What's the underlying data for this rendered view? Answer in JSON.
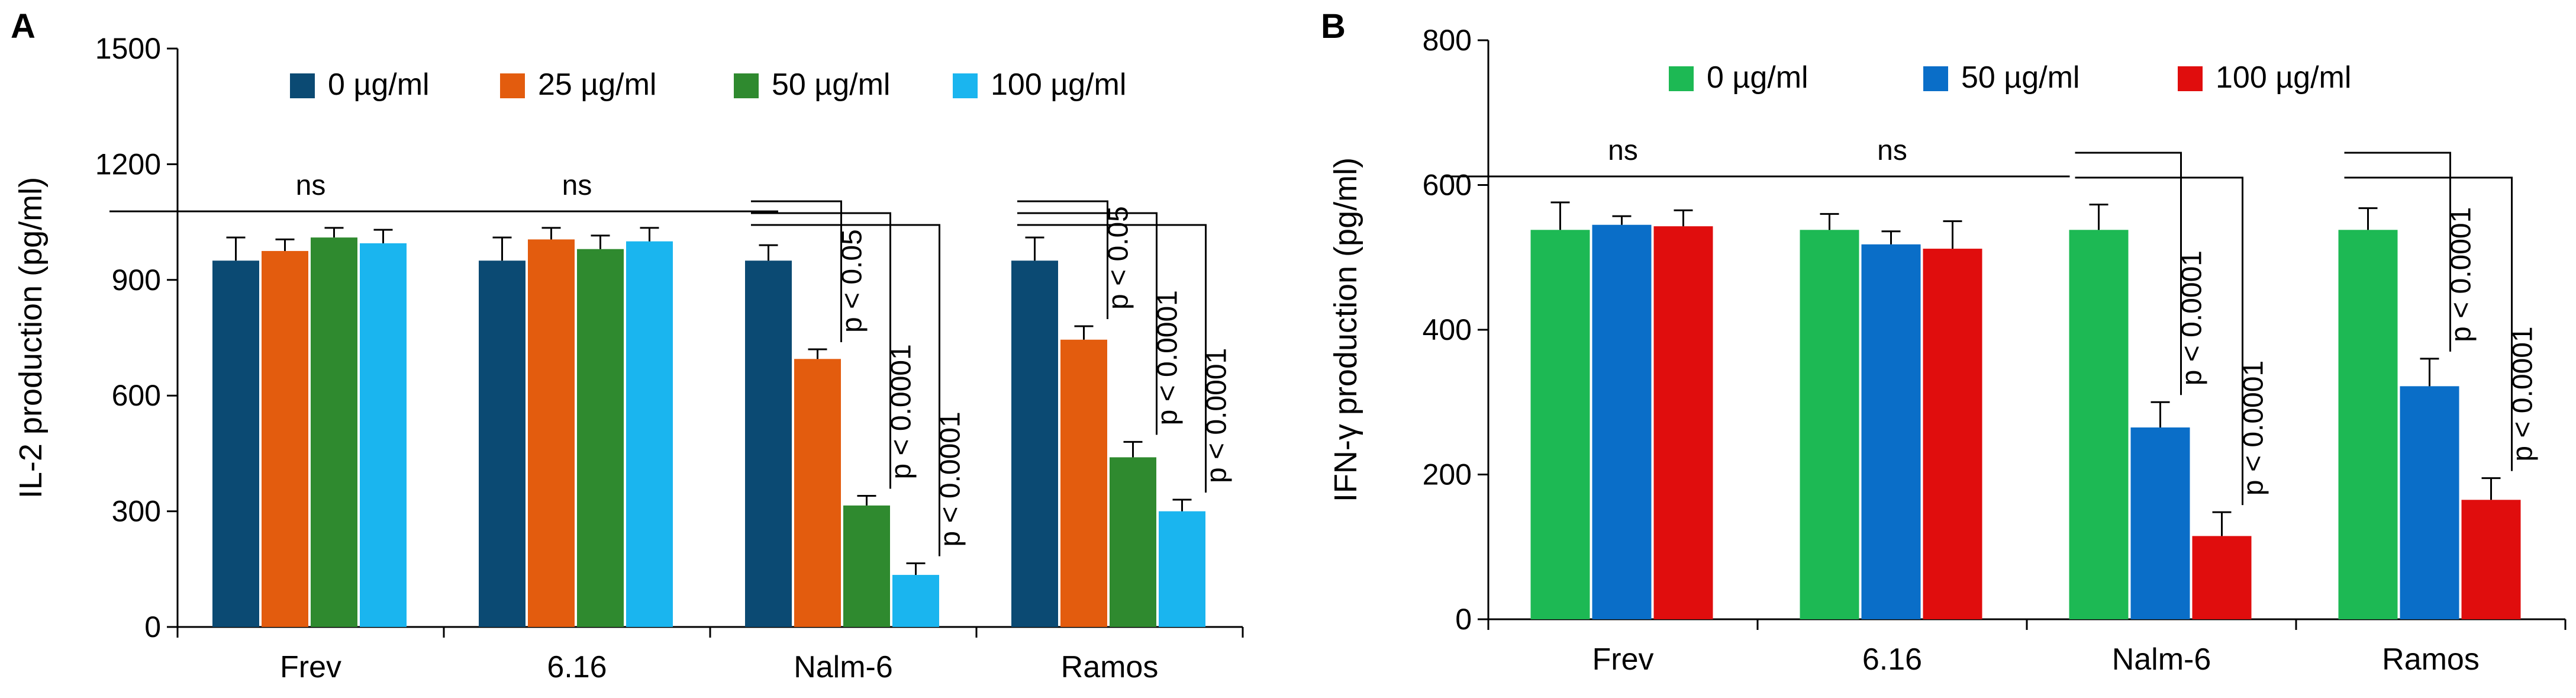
{
  "chart_data": [
    {
      "panel": "A",
      "type": "bar",
      "ylabel": "IL-2 production (pg/ml)",
      "xlabel": "",
      "ylim": [
        0,
        1500
      ],
      "yticks": [
        0,
        300,
        600,
        900,
        1200,
        1500
      ],
      "categories": [
        "Frev",
        "6.16",
        "Nalm-6",
        "Ramos"
      ],
      "legend_position": "top",
      "series": [
        {
          "name": "0 µg/ml",
          "color": "#0b4a73",
          "values": [
            950,
            950,
            950,
            950
          ],
          "errors": [
            60,
            60,
            40,
            60
          ]
        },
        {
          "name": "25 µg/ml",
          "color": "#e35c0e",
          "values": [
            975,
            1005,
            695,
            745
          ],
          "errors": [
            30,
            30,
            25,
            35
          ]
        },
        {
          "name": "50 µg/ml",
          "color": "#2f8a2f",
          "values": [
            1010,
            980,
            315,
            440
          ],
          "errors": [
            25,
            35,
            25,
            40
          ]
        },
        {
          "name": "100 µg/ml",
          "color": "#1ab5ef",
          "values": [
            995,
            1000,
            135,
            300
          ],
          "errors": [
            35,
            35,
            30,
            30
          ]
        }
      ],
      "annotations": [
        {
          "category": 0,
          "text": "ns"
        },
        {
          "category": 1,
          "text": "ns"
        },
        {
          "category": 2,
          "series": 1,
          "text": "p < 0.05"
        },
        {
          "category": 2,
          "series": 2,
          "text": "p < 0.0001"
        },
        {
          "category": 2,
          "series": 3,
          "text": "p < 0.0001"
        },
        {
          "category": 3,
          "series": 1,
          "text": "p < 0.05"
        },
        {
          "category": 3,
          "series": 2,
          "text": "p < 0.0001"
        },
        {
          "category": 3,
          "series": 3,
          "text": "p < 0.0001"
        }
      ]
    },
    {
      "panel": "B",
      "type": "bar",
      "ylabel": "IFN-γ production (pg/ml)",
      "xlabel": "",
      "ylim": [
        0,
        800
      ],
      "yticks": [
        0,
        200,
        400,
        600,
        800
      ],
      "categories": [
        "Frev",
        "6.16",
        "Nalm-6",
        "Ramos"
      ],
      "legend_position": "top",
      "series": [
        {
          "name": "0 µg/ml",
          "color": "#1db954",
          "values": [
            538,
            538,
            538,
            538
          ],
          "errors": [
            38,
            22,
            35,
            30
          ]
        },
        {
          "name": "50 µg/ml",
          "color": "#0a6ec8",
          "values": [
            545,
            518,
            265,
            322
          ],
          "errors": [
            12,
            18,
            35,
            38
          ]
        },
        {
          "name": "100 µg/ml",
          "color": "#e00d0d",
          "values": [
            543,
            512,
            115,
            165
          ],
          "errors": [
            22,
            38,
            33,
            30
          ]
        }
      ],
      "annotations": [
        {
          "category": 0,
          "text": "ns"
        },
        {
          "category": 1,
          "text": "ns"
        },
        {
          "category": 2,
          "series": 1,
          "text": "p < 0.0001"
        },
        {
          "category": 2,
          "series": 2,
          "text": "p < 0.0001"
        },
        {
          "category": 3,
          "series": 1,
          "text": "p < 0.0001"
        },
        {
          "category": 3,
          "series": 2,
          "text": "p < 0.0001"
        }
      ]
    }
  ]
}
